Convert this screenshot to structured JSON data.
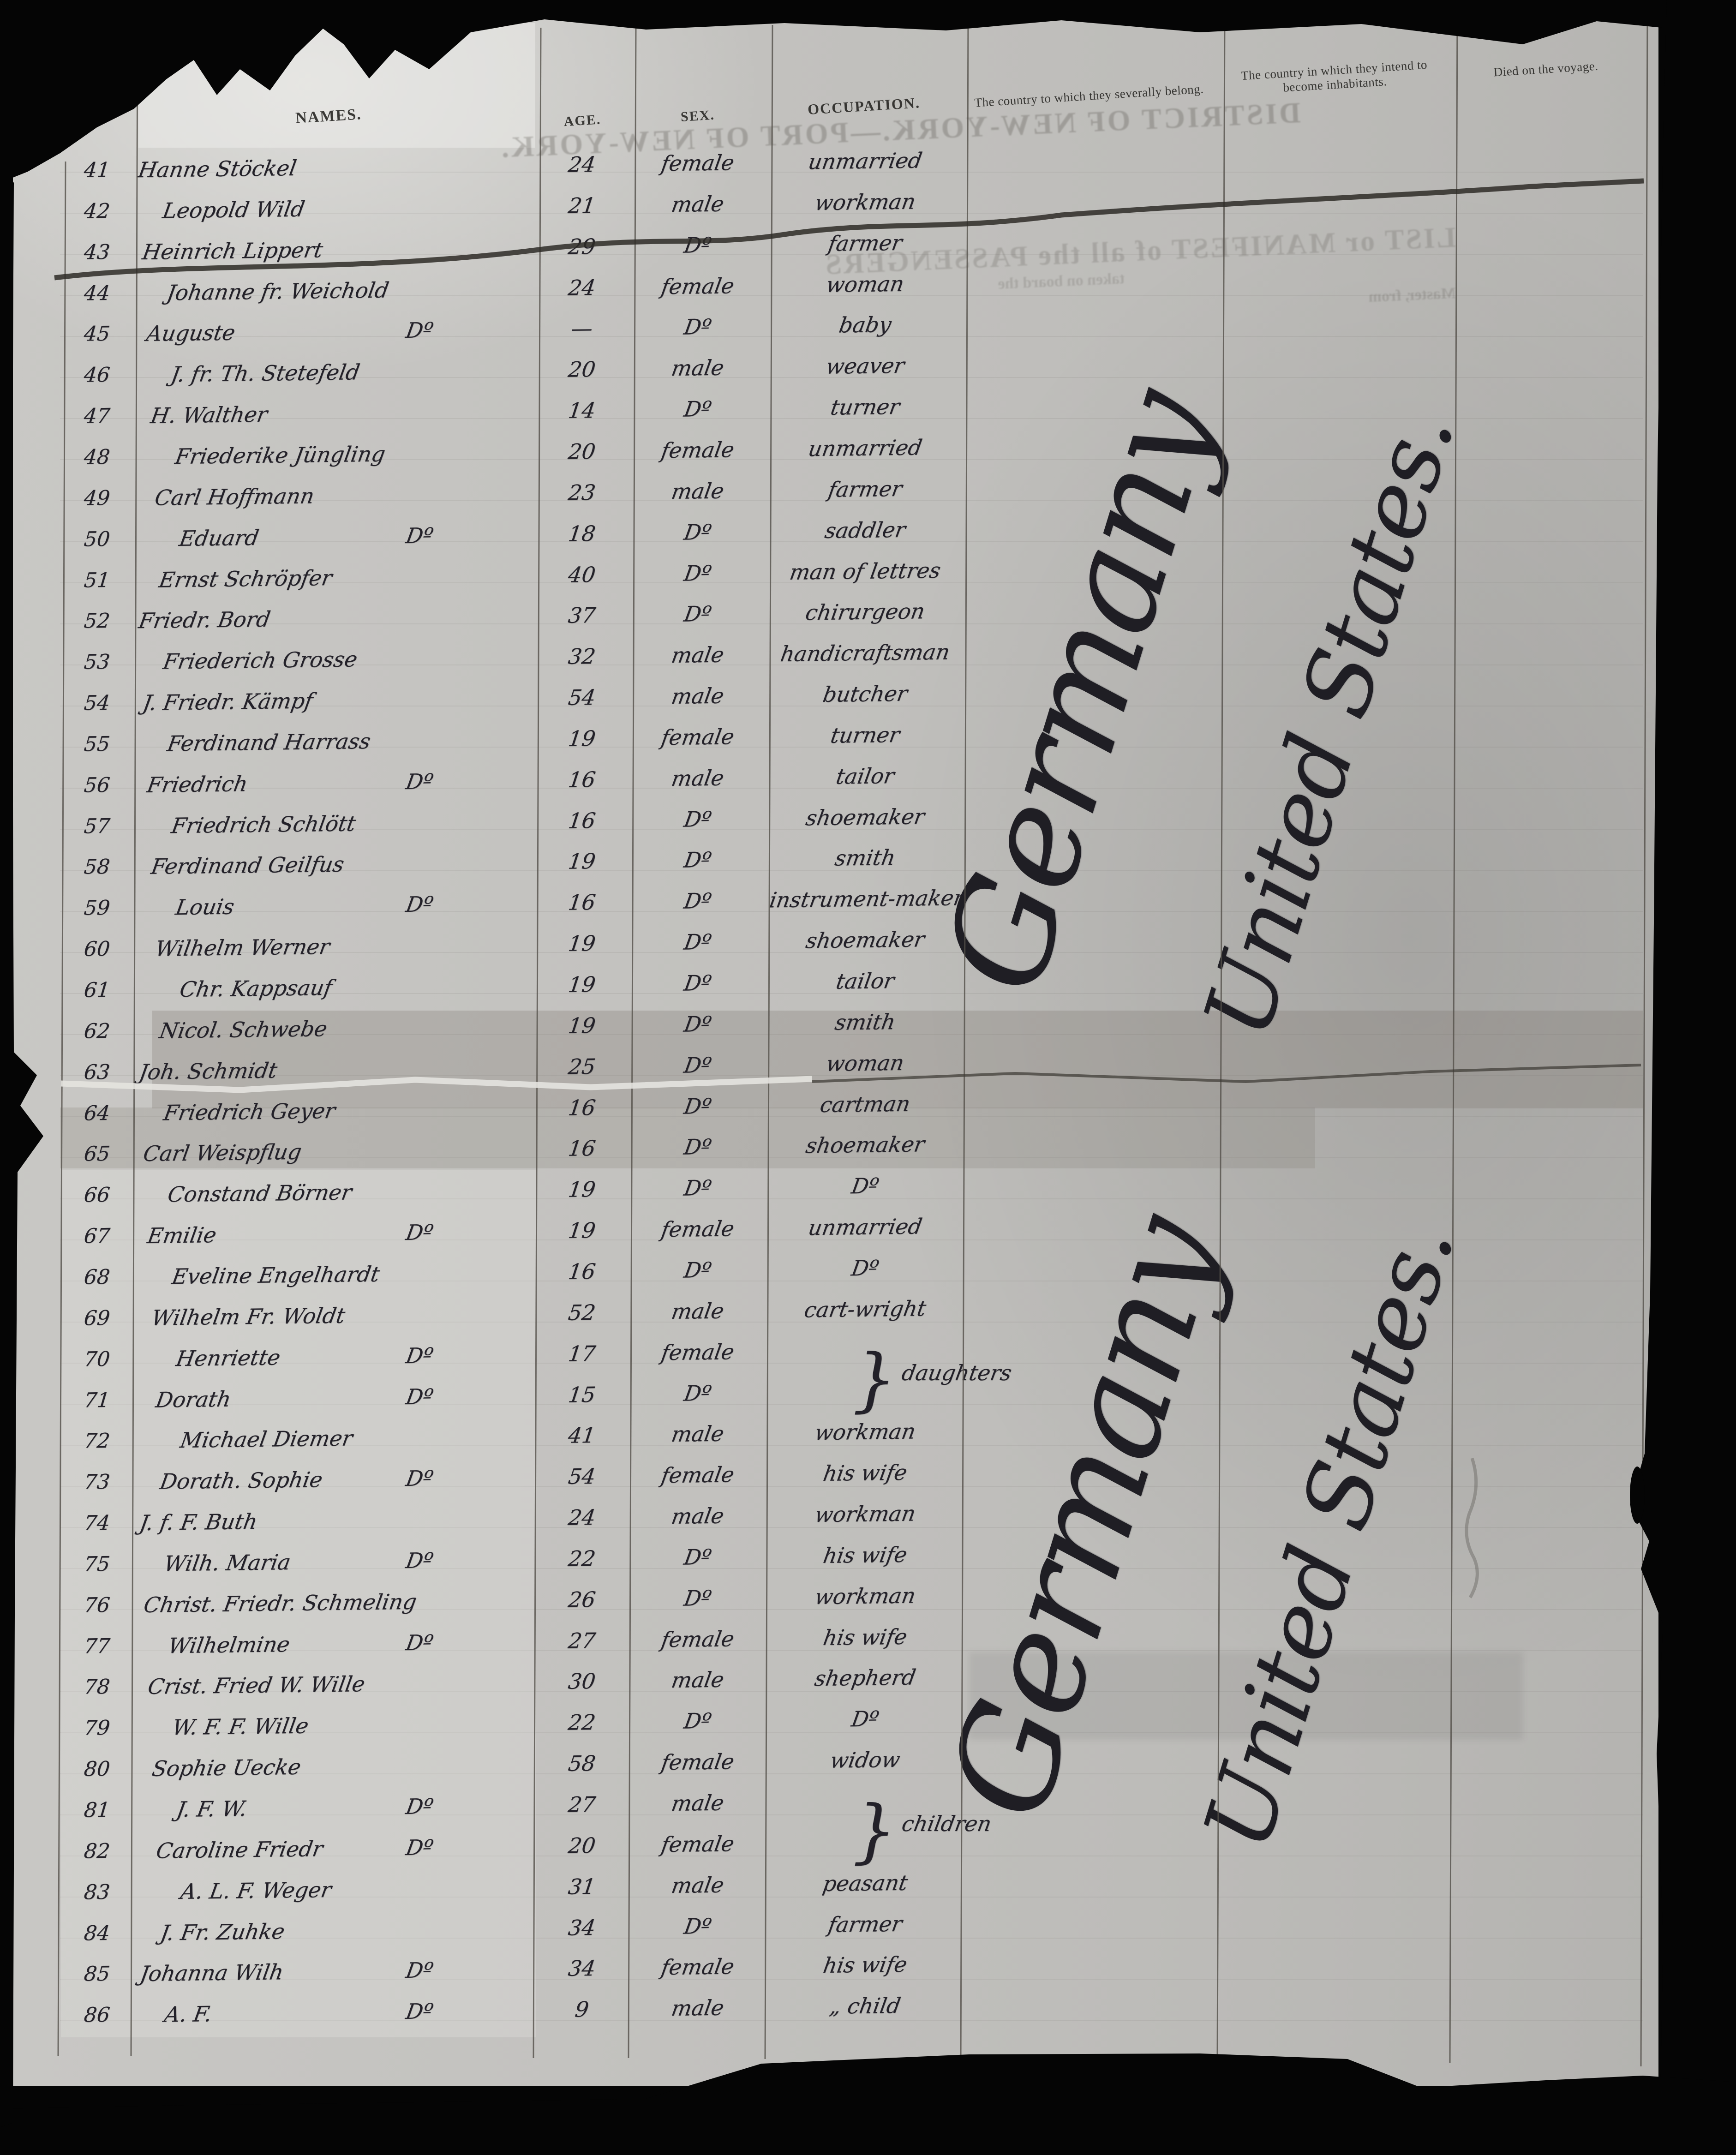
{
  "document": {
    "kind": "handwritten ship passenger manifest page",
    "header": {
      "names": "NAMES.",
      "age": "AGE.",
      "sex": "SEX.",
      "occupation": "OCCUPATION.",
      "belong": "The country to which they severally belong.",
      "inhabit": "The country in which they intend to become inhabitants.",
      "died": "Died on the voyage."
    },
    "bleed_through": {
      "district": "DISTRICT OF NEW-YORK.—PORT OF NEW-YORK.",
      "manifest": "LIST or MANIFEST of all the PASSENGERS",
      "taken": "taken on board the",
      "master": "Master, from"
    },
    "countries": {
      "belong_upper": "Germany",
      "inhabit_upper": "United States.",
      "belong_lower": "Germany",
      "inhabit_lower": "United States."
    },
    "braces": {
      "upper_glyph": "}",
      "upper_label": "daughters",
      "lower_glyph": "}",
      "lower_label": "children"
    },
    "rows": [
      {
        "no": "41",
        "name": "Hanne Stöckel",
        "ditto": "",
        "age": "24",
        "sex": "female",
        "occ": "unmarried"
      },
      {
        "no": "42",
        "name": "Leopold Wild",
        "ditto": "",
        "age": "21",
        "sex": "male",
        "occ": "workman"
      },
      {
        "no": "43",
        "name": "Heinrich Lippert",
        "ditto": "",
        "age": "29",
        "sex": "Dº",
        "occ": "farmer"
      },
      {
        "no": "44",
        "name": "Johanne fr. Weichold",
        "ditto": "",
        "age": "24",
        "sex": "female",
        "occ": "woman"
      },
      {
        "no": "45",
        "name": "Auguste",
        "ditto": "Dº",
        "age": "—",
        "sex": "Dº",
        "occ": "baby"
      },
      {
        "no": "46",
        "name": "J. fr. Th. Stetefeld",
        "ditto": "",
        "age": "20",
        "sex": "male",
        "occ": "weaver"
      },
      {
        "no": "47",
        "name": "H. Walther",
        "ditto": "",
        "age": "14",
        "sex": "Dº",
        "occ": "turner"
      },
      {
        "no": "48",
        "name": "Friederike Jüngling",
        "ditto": "",
        "age": "20",
        "sex": "female",
        "occ": "unmarried"
      },
      {
        "no": "49",
        "name": "Carl Hoffmann",
        "ditto": "",
        "age": "23",
        "sex": "male",
        "occ": "farmer"
      },
      {
        "no": "50",
        "name": "Eduard",
        "ditto": "Dº",
        "age": "18",
        "sex": "Dº",
        "occ": "saddler"
      },
      {
        "no": "51",
        "name": "Ernst Schröpfer",
        "ditto": "",
        "age": "40",
        "sex": "Dº",
        "occ": "man of lettres"
      },
      {
        "no": "52",
        "name": "Friedr. Bord",
        "ditto": "",
        "age": "37",
        "sex": "Dº",
        "occ": "chirurgeon"
      },
      {
        "no": "53",
        "name": "Friederich Grosse",
        "ditto": "",
        "age": "32",
        "sex": "male",
        "occ": "handicraftsman"
      },
      {
        "no": "54",
        "name": "J. Friedr. Kämpf",
        "ditto": "",
        "age": "54",
        "sex": "male",
        "occ": "butcher"
      },
      {
        "no": "55",
        "name": "Ferdinand Harrass",
        "ditto": "",
        "age": "19",
        "sex": "female",
        "occ": "turner"
      },
      {
        "no": "56",
        "name": "Friedrich",
        "ditto": "Dº",
        "age": "16",
        "sex": "male",
        "occ": "tailor"
      },
      {
        "no": "57",
        "name": "Friedrich Schlött",
        "ditto": "",
        "age": "16",
        "sex": "Dº",
        "occ": "shoemaker"
      },
      {
        "no": "58",
        "name": "Ferdinand Geilfus",
        "ditto": "",
        "age": "19",
        "sex": "Dº",
        "occ": "smith"
      },
      {
        "no": "59",
        "name": "Louis",
        "ditto": "Dº",
        "age": "16",
        "sex": "Dº",
        "occ": "instrument-maker"
      },
      {
        "no": "60",
        "name": "Wilhelm Werner",
        "ditto": "",
        "age": "19",
        "sex": "Dº",
        "occ": "shoemaker"
      },
      {
        "no": "61",
        "name": "Chr. Kappsauf",
        "ditto": "",
        "age": "19",
        "sex": "Dº",
        "occ": "tailor"
      },
      {
        "no": "62",
        "name": "Nicol. Schwebe",
        "ditto": "",
        "age": "19",
        "sex": "Dº",
        "occ": "smith"
      },
      {
        "no": "63",
        "name": "Joh. Schmidt",
        "ditto": "",
        "age": "25",
        "sex": "Dº",
        "occ": "woman"
      },
      {
        "no": "64",
        "name": "Friedrich Geyer",
        "ditto": "",
        "age": "16",
        "sex": "Dº",
        "occ": "cartman"
      },
      {
        "no": "65",
        "name": "Carl Weispflug",
        "ditto": "",
        "age": "16",
        "sex": "Dº",
        "occ": "shoemaker"
      },
      {
        "no": "66",
        "name": "Constand Börner",
        "ditto": "",
        "age": "19",
        "sex": "Dº",
        "occ": "Dº"
      },
      {
        "no": "67",
        "name": "Emilie",
        "ditto": "Dº",
        "age": "19",
        "sex": "female",
        "occ": "unmarried"
      },
      {
        "no": "68",
        "name": "Eveline Engelhardt",
        "ditto": "",
        "age": "16",
        "sex": "Dº",
        "occ": "Dº"
      },
      {
        "no": "69",
        "name": "Wilhelm Fr. Woldt",
        "ditto": "",
        "age": "52",
        "sex": "male",
        "occ": "cart-wright"
      },
      {
        "no": "70",
        "name": "Henriette",
        "ditto": "Dº",
        "age": "17",
        "sex": "female",
        "occ": ""
      },
      {
        "no": "71",
        "name": "Dorath",
        "ditto": "Dº",
        "age": "15",
        "sex": "Dº",
        "occ": ""
      },
      {
        "no": "72",
        "name": "Michael Diemer",
        "ditto": "",
        "age": "41",
        "sex": "male",
        "occ": "workman"
      },
      {
        "no": "73",
        "name": "Dorath. Sophie",
        "ditto": "Dº",
        "age": "54",
        "sex": "female",
        "occ": "his wife"
      },
      {
        "no": "74",
        "name": "J. f. F. Buth",
        "ditto": "",
        "age": "24",
        "sex": "male",
        "occ": "workman"
      },
      {
        "no": "75",
        "name": "Wilh. Maria",
        "ditto": "Dº",
        "age": "22",
        "sex": "Dº",
        "occ": "his wife"
      },
      {
        "no": "76",
        "name": "Christ. Friedr. Schmeling",
        "ditto": "",
        "age": "26",
        "sex": "Dº",
        "occ": "workman"
      },
      {
        "no": "77",
        "name": "Wilhelmine",
        "ditto": "Dº",
        "age": "27",
        "sex": "female",
        "occ": "his wife"
      },
      {
        "no": "78",
        "name": "Crist. Fried W. Wille",
        "ditto": "",
        "age": "30",
        "sex": "male",
        "occ": "shepherd"
      },
      {
        "no": "79",
        "name": "W. F. F. Wille",
        "ditto": "",
        "age": "22",
        "sex": "Dº",
        "occ": "Dº"
      },
      {
        "no": "80",
        "name": "Sophie Uecke",
        "ditto": "",
        "age": "58",
        "sex": "female",
        "occ": "widow"
      },
      {
        "no": "81",
        "name": "J. F. W.",
        "ditto": "Dº",
        "age": "27",
        "sex": "male",
        "occ": ""
      },
      {
        "no": "82",
        "name": "Caroline Friedr",
        "ditto": "Dº",
        "age": "20",
        "sex": "female",
        "occ": ""
      },
      {
        "no": "83",
        "name": "A. L. F. Weger",
        "ditto": "",
        "age": "31",
        "sex": "male",
        "occ": "peasant"
      },
      {
        "no": "84",
        "name": "J. Fr. Zuhke",
        "ditto": "",
        "age": "34",
        "sex": "Dº",
        "occ": "farmer"
      },
      {
        "no": "85",
        "name": "Johanna Wilh",
        "ditto": "Dº",
        "age": "34",
        "sex": "female",
        "occ": "his wife"
      },
      {
        "no": "86",
        "name": "A. F.",
        "ditto": "Dº",
        "age": "9",
        "sex": "male",
        "occ": "„ child"
      }
    ]
  }
}
